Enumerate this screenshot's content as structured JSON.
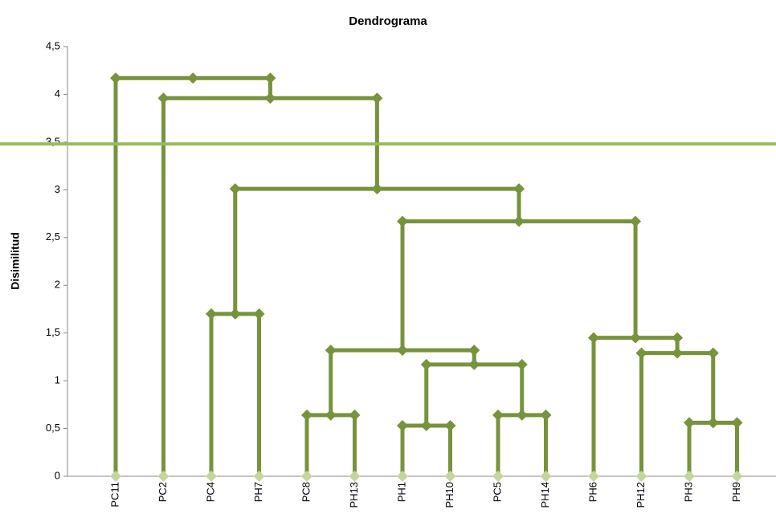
{
  "chart_data": {
    "type": "dendrogram",
    "title": "Dendrograma",
    "y_label": "Disimilitud",
    "categories": [
      "PC11",
      "PC2",
      "PC4",
      "PH7",
      "PC8",
      "PH13",
      "PH1",
      "PH10",
      "PC5",
      "PH14",
      "PH6",
      "PH12",
      "PH3",
      "PH9"
    ],
    "merges": [
      {
        "a": 4,
        "b": 5,
        "height": 0.64
      },
      {
        "a": 6,
        "b": 7,
        "height": 0.53
      },
      {
        "a": 8,
        "b": 9,
        "height": 0.64
      },
      {
        "a": 12,
        "b": 13,
        "height": 0.56
      },
      {
        "a": 15,
        "b": 16,
        "height": 1.17
      },
      {
        "a": 14,
        "b": 18,
        "height": 1.32
      },
      {
        "a": 11,
        "b": 17,
        "height": 1.29
      },
      {
        "a": 10,
        "b": 20,
        "height": 1.45
      },
      {
        "a": 2,
        "b": 3,
        "height": 1.7
      },
      {
        "a": 19,
        "b": 21,
        "height": 2.67
      },
      {
        "a": 22,
        "b": 23,
        "height": 3.01
      },
      {
        "a": 1,
        "b": 24,
        "height": 3.96
      },
      {
        "a": 0,
        "b": 25,
        "height": 4.17
      }
    ],
    "cut_height": 3.48,
    "color": "#77933c",
    "leaf_color": "#c3d69b",
    "cut_color": "#9bbb59",
    "ylim": [
      0,
      4.5
    ],
    "yticks": [
      0,
      {
        "value": 0.5,
        "label": "0,5"
      },
      1,
      {
        "value": 1.5,
        "label": "1,5"
      },
      2,
      {
        "value": 2.5,
        "label": "2,5"
      },
      3,
      {
        "value": 3.5,
        "label": "3,5"
      },
      4,
      {
        "value": 4.5,
        "label": "4,5"
      }
    ]
  }
}
